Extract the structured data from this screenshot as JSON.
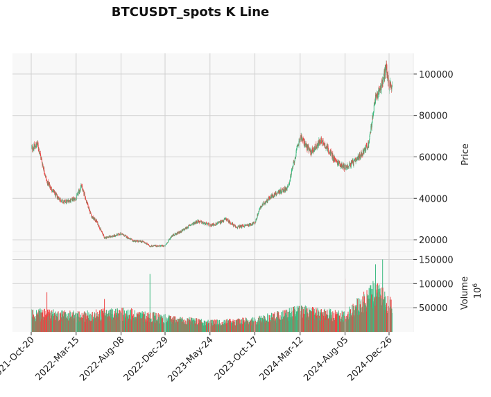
{
  "chart_data": {
    "type": "candlestick",
    "title": "BTCUSDT_spots K Line",
    "price_panel": {
      "ylabel": "Price",
      "ylim": [
        14000,
        110000
      ],
      "yticks": [
        20000,
        40000,
        60000,
        80000,
        100000
      ],
      "ytick_labels": [
        "20000",
        "40000",
        "60000",
        "80000",
        "100000"
      ],
      "grid": true
    },
    "volume_panel": {
      "ylabel": "Volume",
      "scale_label": "10",
      "scale_exponent": "6",
      "ylim": [
        0,
        165000
      ],
      "yticks": [
        50000,
        100000,
        150000
      ],
      "ytick_labels": [
        "50000",
        "100000",
        "150000"
      ],
      "grid": true
    },
    "x_ticks": [
      "2021-Oct-20",
      "2022-Mar-15",
      "2022-Aug-08",
      "2022-Dec-29",
      "2023-May-24",
      "2023-Oct-17",
      "2024-Mar-12",
      "2024-Aug-05",
      "2024-Dec-26"
    ],
    "colors": {
      "up": "#26a69a",
      "down": "#ef5350",
      "up_fill": "#3dba80",
      "down_fill": "#ee4444",
      "grid": "#d0d0d0",
      "panel_bg": "#f8f8f8"
    },
    "price_path": {
      "x": [
        "2021-Oct-20",
        "2021-Nov-10",
        "2021-Dec-10",
        "2022-Jan-05",
        "2022-Feb-01",
        "2022-Mar-15",
        "2022-Apr-01",
        "2022-May-05",
        "2022-May-20",
        "2022-Jun-15",
        "2022-Jul-20",
        "2022-Aug-08",
        "2022-Sep-15",
        "2022-Oct-20",
        "2022-Nov-10",
        "2022-Dec-29",
        "2023-Jan-20",
        "2023-Feb-20",
        "2023-Mar-20",
        "2023-Apr-14",
        "2023-May-24",
        "2023-Jun-20",
        "2023-Jul-15",
        "2023-Aug-17",
        "2023-Sep-20",
        "2023-Oct-17",
        "2023-Nov-01",
        "2023-Dec-01",
        "2024-Jan-01",
        "2024-Feb-01",
        "2024-Mar-12",
        "2024-Apr-15",
        "2024-May-20",
        "2024-Jun-10",
        "2024-Jul-05",
        "2024-Aug-05",
        "2024-Sep-10",
        "2024-Oct-20",
        "2024-Nov-12",
        "2024-Dec-05",
        "2024-Dec-17",
        "2024-Dec-26",
        "2025-Jan-05"
      ],
      "close": [
        64000,
        66000,
        48000,
        42000,
        38000,
        40000,
        46000,
        31000,
        29000,
        21000,
        22000,
        23000,
        19500,
        19000,
        17000,
        17000,
        22000,
        24000,
        27000,
        29000,
        27000,
        28000,
        30000,
        26000,
        27000,
        28000,
        35000,
        40000,
        43000,
        45000,
        70000,
        62000,
        68000,
        64000,
        58000,
        55000,
        58000,
        66000,
        88000,
        96000,
        104000,
        94000,
        95000
      ]
    },
    "volume_profile": {
      "x": [
        "2021-Oct-20",
        "2022-Mar-15",
        "2022-Aug-08",
        "2022-Dec-29",
        "2023-May-24",
        "2023-Oct-17",
        "2024-Mar-12",
        "2024-Aug-05",
        "2024-Nov-12",
        "2024-Dec-26"
      ],
      "typical": [
        40000,
        35000,
        42000,
        30000,
        20000,
        25000,
        45000,
        35000,
        90000,
        60000
      ],
      "peaks": [
        {
          "x": "2021-Dec-10",
          "value": 82000
        },
        {
          "x": "2022-Jun-15",
          "value": 68000
        },
        {
          "x": "2022-Nov-10",
          "value": 120000
        },
        {
          "x": "2024-Mar-12",
          "value": 100000
        },
        {
          "x": "2024-Aug-05",
          "value": 110000
        },
        {
          "x": "2024-Nov-12",
          "value": 140000
        },
        {
          "x": "2024-Dec-05",
          "value": 150000
        }
      ]
    }
  }
}
